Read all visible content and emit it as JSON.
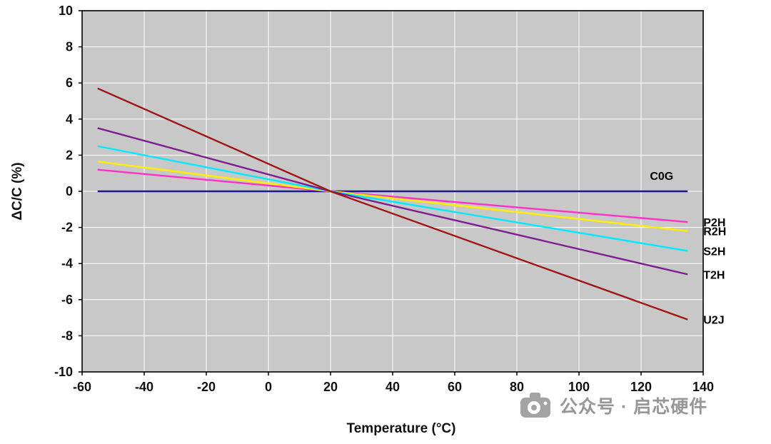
{
  "page": {
    "background": "#ffffff"
  },
  "watermark": {
    "text": "公众号 · 启芯硬件",
    "icon": "camera-logo-icon",
    "color": "#979797"
  },
  "chart_data": {
    "type": "line",
    "title": "",
    "xlabel": "Temperature (°C)",
    "ylabel": "ΔC/C (%)",
    "xlim": [
      -60,
      140
    ],
    "ylim": [
      -10,
      10
    ],
    "x_ticks": [
      -60,
      -40,
      -20,
      0,
      20,
      40,
      60,
      80,
      100,
      120,
      140
    ],
    "y_ticks": [
      10,
      8,
      6,
      4,
      2,
      0,
      -2,
      -4,
      -6,
      -8,
      -10
    ],
    "grid": true,
    "plot_bg": "#c8c8c8",
    "grid_color": "#ffffff",
    "legend_position": "labels-at-line-ends",
    "crossing_point": [
      20,
      0
    ],
    "series": [
      {
        "name": "C0G",
        "color": "#1a1a8c",
        "label_pos": "inside-end",
        "points": [
          [
            -55,
            0
          ],
          [
            135,
            0
          ]
        ]
      },
      {
        "name": "P2H",
        "color": "#ff30c8",
        "label_pos": "right",
        "points": [
          [
            -55,
            1.2
          ],
          [
            20,
            0
          ],
          [
            135,
            -1.7
          ]
        ]
      },
      {
        "name": "R2H",
        "color": "#ffee00",
        "label_pos": "right",
        "points": [
          [
            -55,
            1.65
          ],
          [
            20,
            0
          ],
          [
            135,
            -2.2
          ]
        ]
      },
      {
        "name": "S2H",
        "color": "#00eaff",
        "label_pos": "right",
        "points": [
          [
            -55,
            2.5
          ],
          [
            20,
            0
          ],
          [
            135,
            -3.3
          ]
        ]
      },
      {
        "name": "T2H",
        "color": "#7e1f8f",
        "label_pos": "right",
        "points": [
          [
            -55,
            3.5
          ],
          [
            20,
            0
          ],
          [
            135,
            -4.6
          ]
        ]
      },
      {
        "name": "U2J",
        "color": "#a01515",
        "label_pos": "right",
        "points": [
          [
            -55,
            5.7
          ],
          [
            20,
            0
          ],
          [
            135,
            -7.1
          ]
        ]
      }
    ]
  }
}
